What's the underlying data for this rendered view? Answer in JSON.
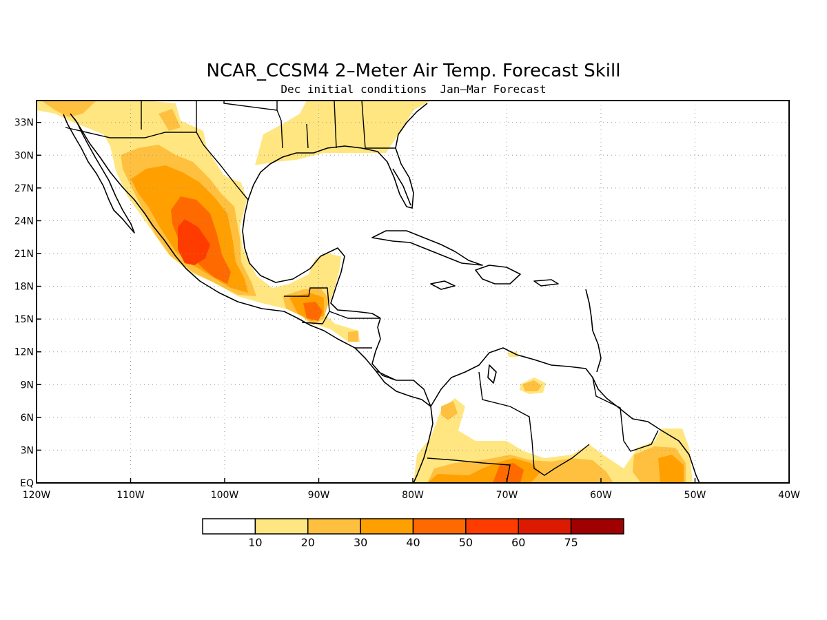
{
  "title": "NCAR_CCSM4 2–Meter Air Temp. Forecast Skill",
  "subtitle": "Dec initial conditions  Jan–Mar Forecast",
  "map": {
    "lon_range": [
      -120,
      -40
    ],
    "lat_range": [
      0,
      35
    ],
    "x_ticks": [
      {
        "lon": -120,
        "label": "120W"
      },
      {
        "lon": -110,
        "label": "110W"
      },
      {
        "lon": -100,
        "label": "100W"
      },
      {
        "lon": -90,
        "label": "90W"
      },
      {
        "lon": -80,
        "label": "80W"
      },
      {
        "lon": -70,
        "label": "70W"
      },
      {
        "lon": -60,
        "label": "60W"
      },
      {
        "lon": -50,
        "label": "50W"
      },
      {
        "lon": -40,
        "label": "40W"
      }
    ],
    "y_ticks": [
      {
        "lat": 0,
        "label": "EQ"
      },
      {
        "lat": 3,
        "label": "3N"
      },
      {
        "lat": 6,
        "label": "6N"
      },
      {
        "lat": 9,
        "label": "9N"
      },
      {
        "lat": 12,
        "label": "12N"
      },
      {
        "lat": 15,
        "label": "15N"
      },
      {
        "lat": 18,
        "label": "18N"
      },
      {
        "lat": 21,
        "label": "21N"
      },
      {
        "lat": 24,
        "label": "24N"
      },
      {
        "lat": 27,
        "label": "27N"
      },
      {
        "lat": 30,
        "label": "30N"
      },
      {
        "lat": 33,
        "label": "33N"
      }
    ],
    "grid": true
  },
  "colorbar": {
    "thresholds": [
      "10",
      "20",
      "30",
      "40",
      "50",
      "60",
      "75"
    ],
    "colors": [
      "#ffffff",
      "#ffe680",
      "#ffc040",
      "#ffa000",
      "#ff6a00",
      "#ff3c00",
      "#dc1a00",
      "#a00000"
    ]
  },
  "colors": {
    "level1": "#ffe680",
    "level2": "#ffc040",
    "level3": "#ffa000",
    "level4": "#ff6a00",
    "level5": "#ff3c00"
  }
}
